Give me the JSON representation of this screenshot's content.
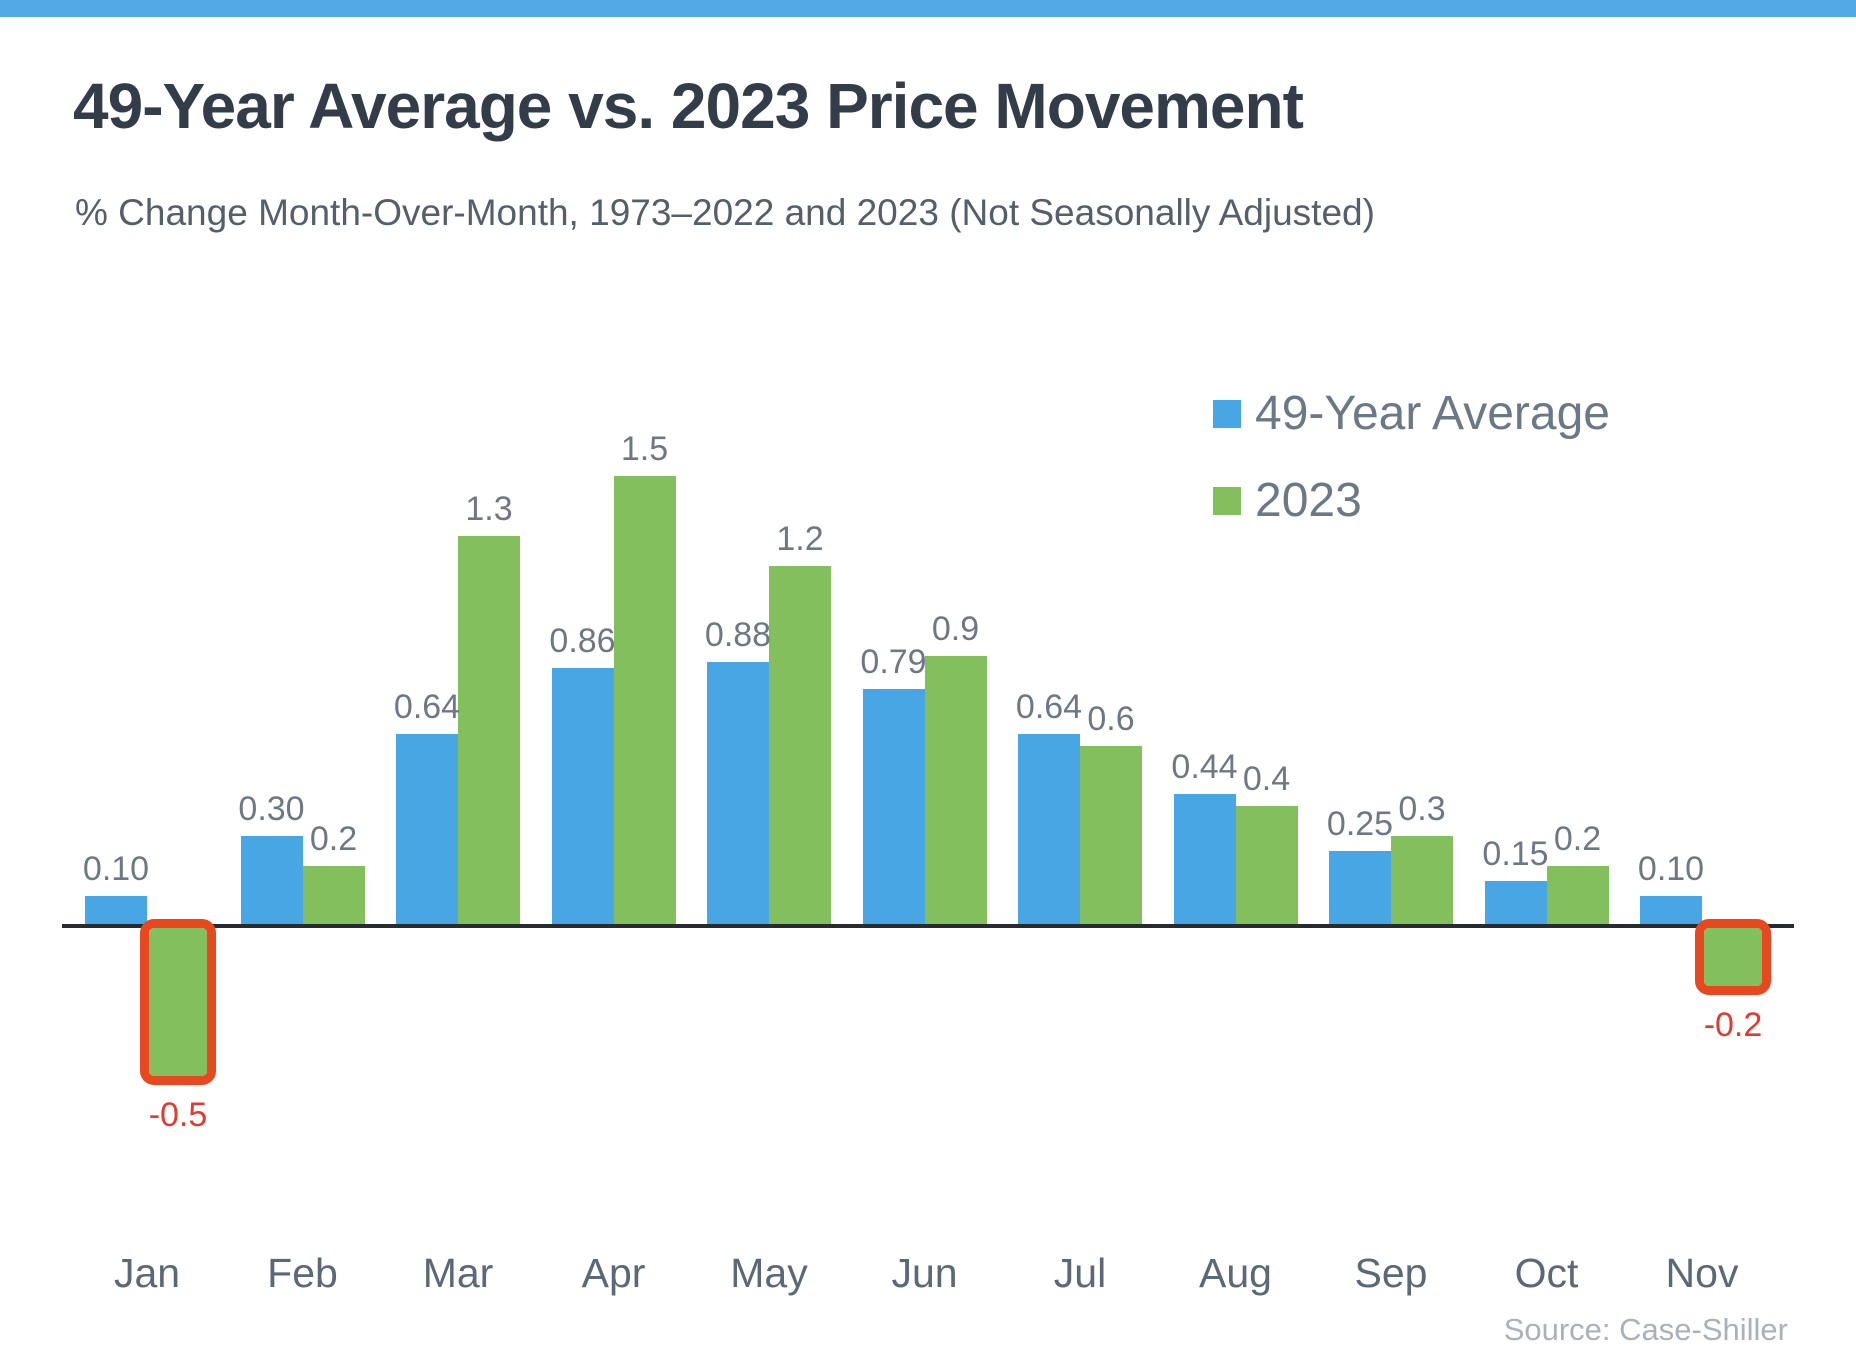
{
  "page": {
    "title": "49-Year Average vs. 2023 Price Movement",
    "subtitle": "% Change Month-Over-Month, 1973–2022 and 2023 (Not Seasonally Adjusted)",
    "source": "Source: Case-Shiller"
  },
  "colors": {
    "top_strip": "#52a9e6",
    "blue_bar": "#47a6e3",
    "green_bar": "#84bf5e",
    "highlight_outline": "#e8481f",
    "negative_label": "#e23a30",
    "axis_line": "#272c31",
    "value_label": "#6e7884",
    "month_label": "#5a6877",
    "legend_text": "#6b7885",
    "title": "#323d49",
    "subtitle": "#545f6b",
    "source": "#a9b2bc"
  },
  "chart_data": {
    "type": "bar",
    "title": "49-Year Average vs. 2023 Price Movement",
    "subtitle": "% Change Month-Over-Month, 1973–2022 and 2023 (Not Seasonally Adjusted)",
    "categories": [
      "Jan",
      "Feb",
      "Mar",
      "Apr",
      "May",
      "Jun",
      "Jul",
      "Aug",
      "Sep",
      "Oct",
      "Nov"
    ],
    "series": [
      {
        "name": "49-Year Average",
        "color": "#47a6e3",
        "values": [
          0.1,
          0.3,
          0.64,
          0.86,
          0.88,
          0.79,
          0.64,
          0.44,
          0.25,
          0.15,
          0.1
        ],
        "labels": [
          "0.10",
          "0.30",
          "0.64",
          "0.86",
          "0.88",
          "0.79",
          "0.64",
          "0.44",
          "0.25",
          "0.15",
          "0.10"
        ]
      },
      {
        "name": "2023",
        "color": "#84bf5e",
        "values": [
          -0.5,
          0.2,
          1.3,
          1.5,
          1.2,
          0.9,
          0.6,
          0.4,
          0.3,
          0.2,
          -0.2
        ],
        "labels": [
          "-0.5",
          "0.2",
          "1.3",
          "1.5",
          "1.2",
          "0.9",
          "0.6",
          "0.4",
          "0.3",
          "0.2",
          "-0.2"
        ]
      }
    ],
    "highlighted_negative_indices": [
      0,
      10
    ],
    "ylim": [
      -0.6,
      1.6
    ],
    "grid": false,
    "legend_position": "top-right",
    "xlabel": "",
    "ylabel": "",
    "source": "Source: Case-Shiller"
  }
}
